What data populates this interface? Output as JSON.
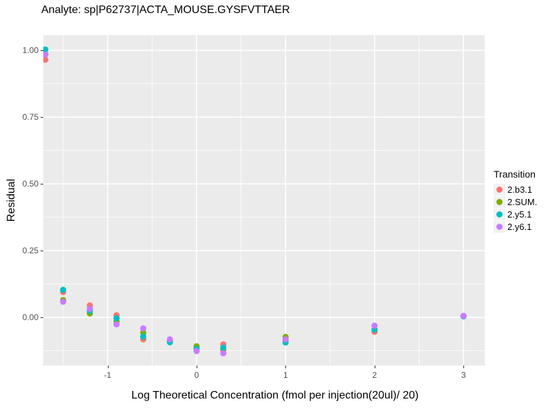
{
  "chart_data": {
    "type": "scatter",
    "title": "Analyte: sp|P62737|ACTA_MOUSE.GYSFVTTAER",
    "xlabel": "Log Theoretical Concentration (fmol per injection(20ul)/ 20)",
    "ylabel": "Residual",
    "legend": {
      "title": "Transition",
      "position": "right"
    },
    "panel_bg": "#EBEBEB",
    "grid_color": "#FFFFFF",
    "grid": true,
    "xlim": [
      -1.723,
      3.238
    ],
    "ylim": [
      -0.18,
      1.057
    ],
    "x_ticks": {
      "values": [
        -1,
        0,
        1,
        2,
        3
      ],
      "labels": [
        "-1",
        "0",
        "1",
        "2",
        "3"
      ]
    },
    "y_ticks": {
      "values": [
        0,
        0.25,
        0.5,
        0.75,
        1
      ],
      "labels": [
        "0.00",
        "0.25",
        "0.50",
        "0.75",
        "1.00"
      ]
    },
    "x_minor": [
      -1.5,
      -0.5,
      0.5,
      1.5,
      2.5
    ],
    "y_minor": [
      -0.125,
      0.125,
      0.375,
      0.625,
      0.875
    ],
    "point_radius": 4.5,
    "series": [
      {
        "name": "2.b3.1",
        "color": "#F8766D",
        "points": [
          [
            -1.7,
            0.965
          ],
          [
            -1.5,
            0.095
          ],
          [
            -1.2,
            0.045
          ],
          [
            -0.9,
            0.008
          ],
          [
            -0.6,
            -0.082
          ],
          [
            -0.3,
            -0.09
          ],
          [
            0,
            -0.115
          ],
          [
            0.3,
            -0.101
          ],
          [
            1,
            -0.085
          ],
          [
            2,
            -0.054
          ],
          [
            3,
            0.005
          ]
        ]
      },
      {
        "name": "2.SUM.",
        "color": "#7CAE00",
        "points": [
          [
            -1.7,
            0.985
          ],
          [
            -1.5,
            0.065
          ],
          [
            -1.2,
            0.015
          ],
          [
            -0.9,
            -0.015
          ],
          [
            -0.6,
            -0.057
          ],
          [
            -0.3,
            -0.088
          ],
          [
            0,
            -0.108
          ],
          [
            0.3,
            -0.121
          ],
          [
            1,
            -0.073
          ],
          [
            2,
            -0.045
          ],
          [
            3,
            0.005
          ]
        ]
      },
      {
        "name": "2.y5.1",
        "color": "#00BFC4",
        "points": [
          [
            -1.7,
            1.003
          ],
          [
            -1.5,
            0.103
          ],
          [
            -1.2,
            0.025
          ],
          [
            -0.9,
            -0.003
          ],
          [
            -0.6,
            -0.072
          ],
          [
            -0.3,
            -0.093
          ],
          [
            0,
            -0.118
          ],
          [
            0.3,
            -0.113
          ],
          [
            1,
            -0.094
          ],
          [
            2,
            -0.046
          ],
          [
            3,
            0.004
          ]
        ]
      },
      {
        "name": "2.y6.1",
        "color": "#C77CFF",
        "points": [
          [
            -1.7,
            0.984
          ],
          [
            -1.5,
            0.059
          ],
          [
            -1.2,
            0.032
          ],
          [
            -0.9,
            -0.026
          ],
          [
            -0.6,
            -0.041
          ],
          [
            -0.3,
            -0.082
          ],
          [
            0,
            -0.126
          ],
          [
            0.3,
            -0.134
          ],
          [
            1,
            -0.082
          ],
          [
            2,
            -0.031
          ],
          [
            3,
            0.006
          ]
        ]
      }
    ]
  }
}
